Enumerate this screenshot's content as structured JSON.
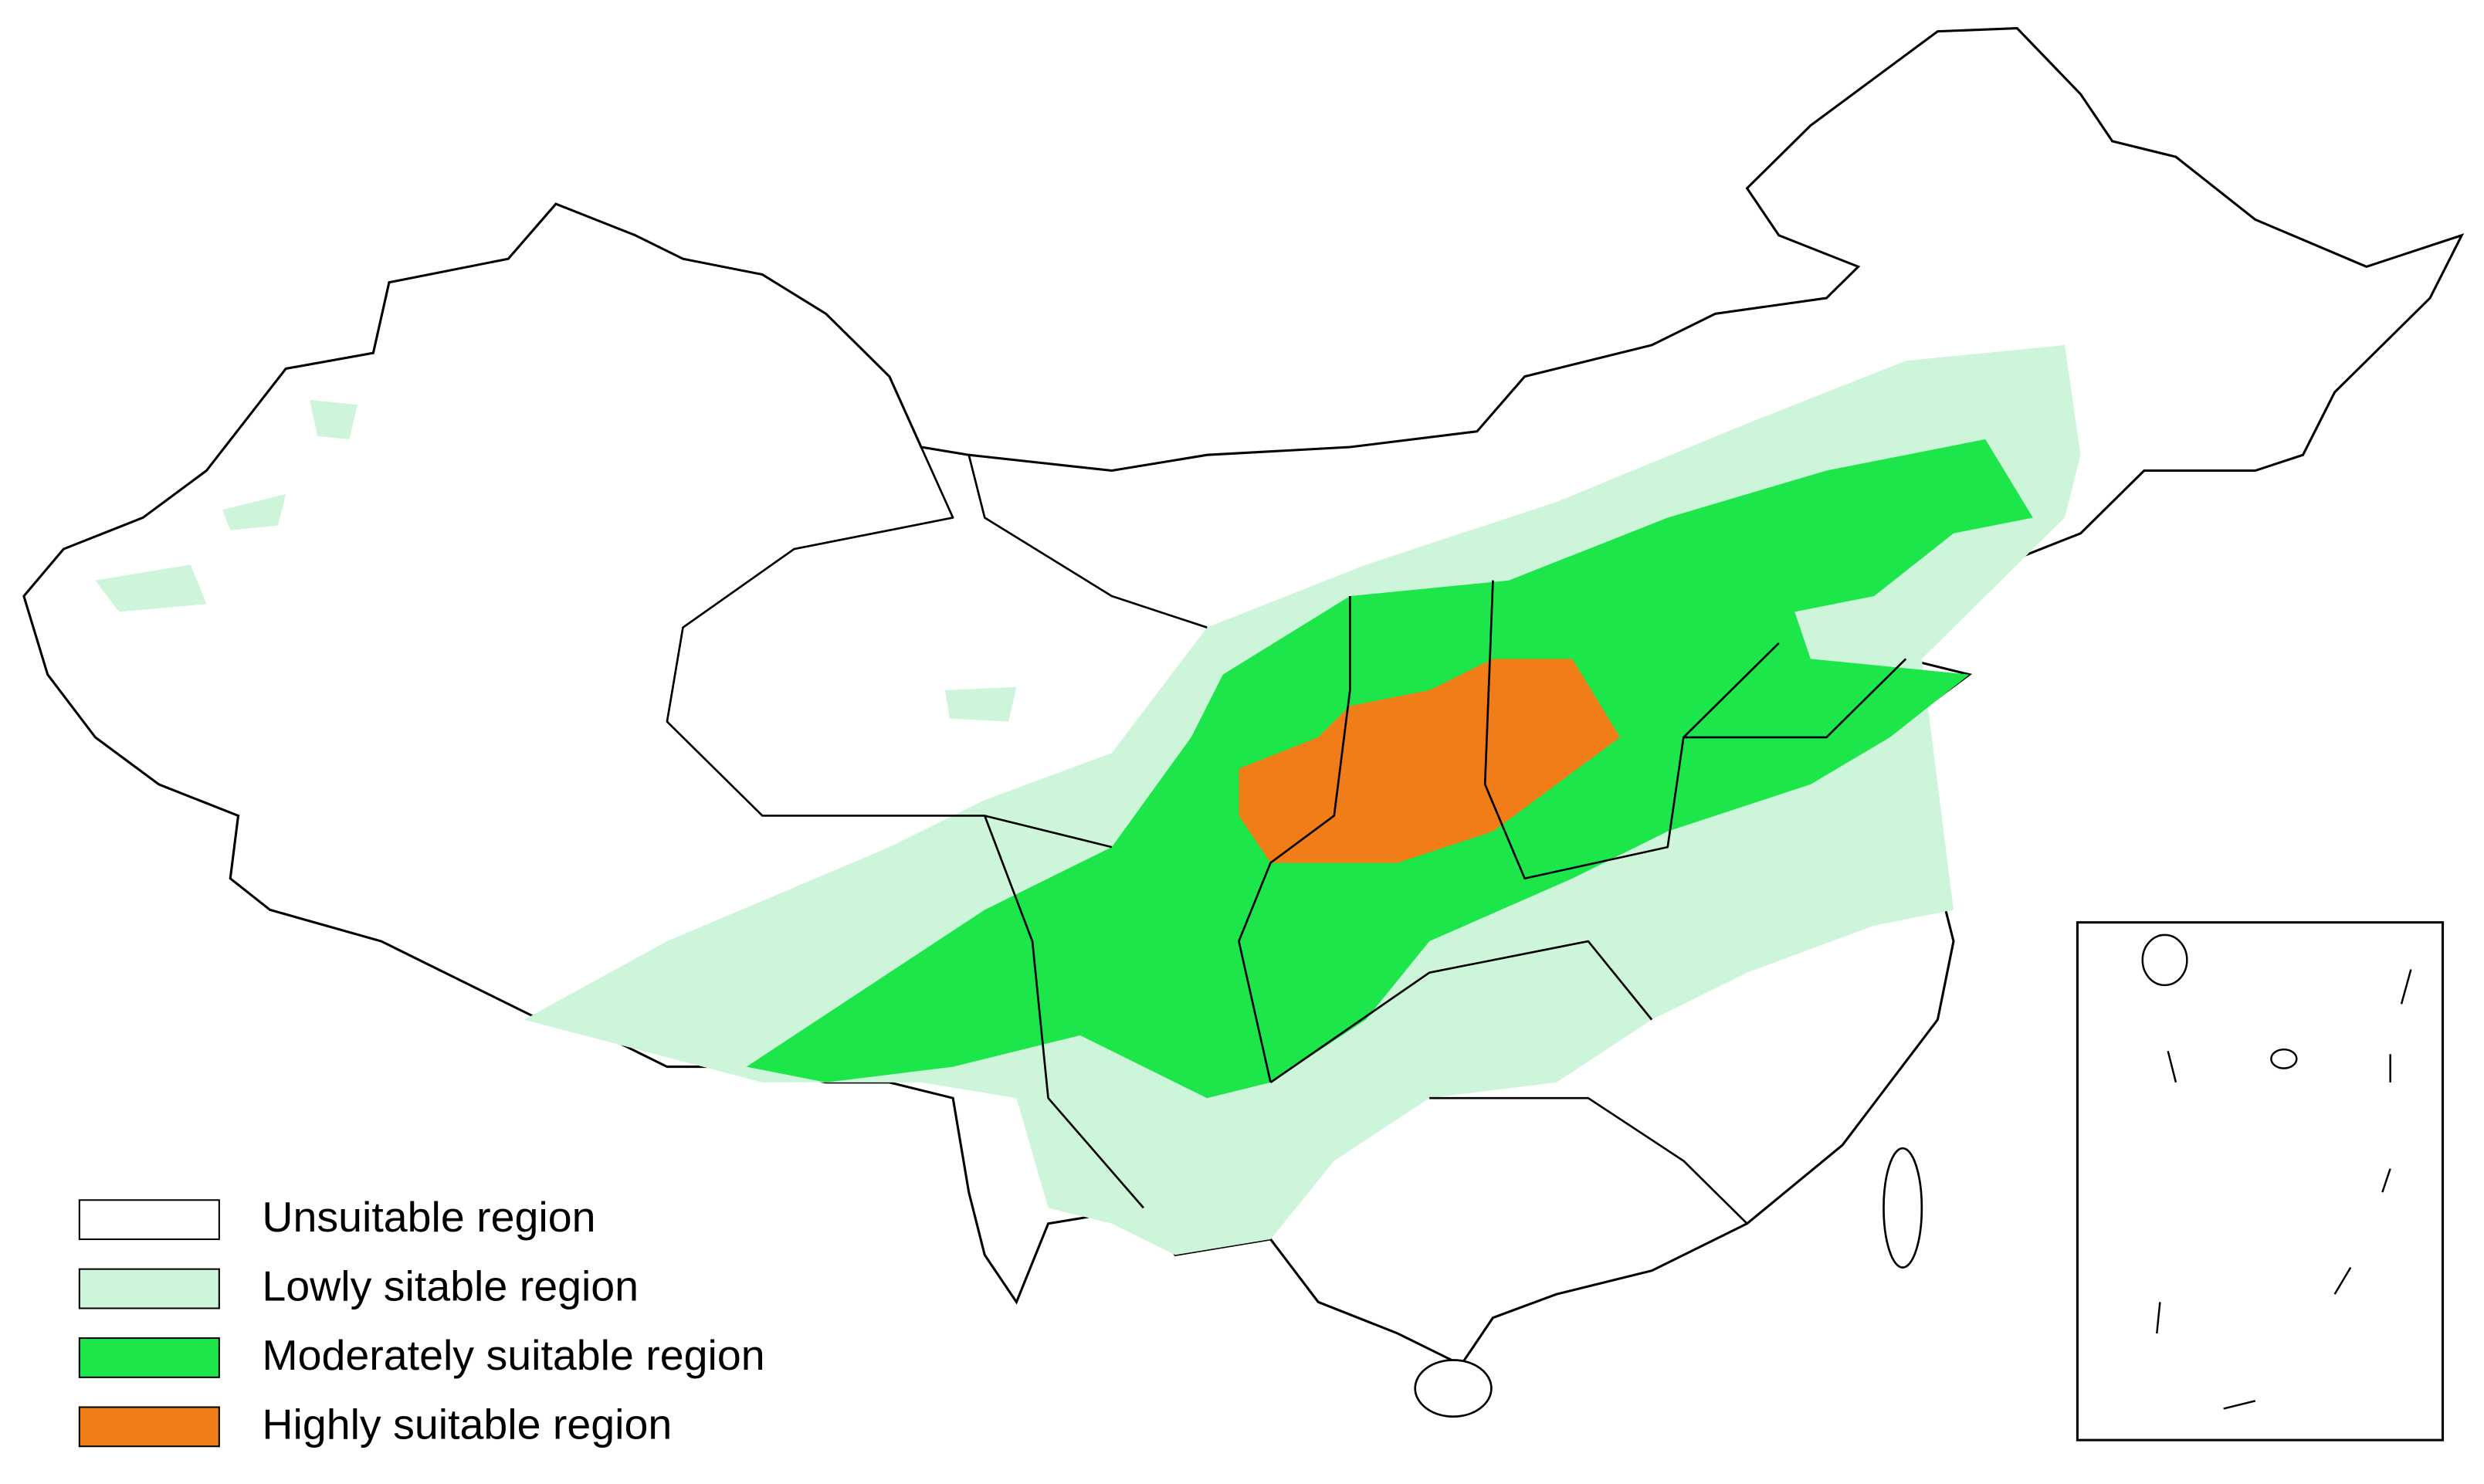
{
  "legend": {
    "items": [
      {
        "label": "Unsuitable region",
        "color": "#ffffff"
      },
      {
        "label": "Lowly sitable region",
        "color": "#ccf5d9"
      },
      {
        "label": "Moderately suitable region",
        "color": "#1de64a"
      },
      {
        "label": "Highly suitable region",
        "color": "#f07d18"
      }
    ]
  }
}
